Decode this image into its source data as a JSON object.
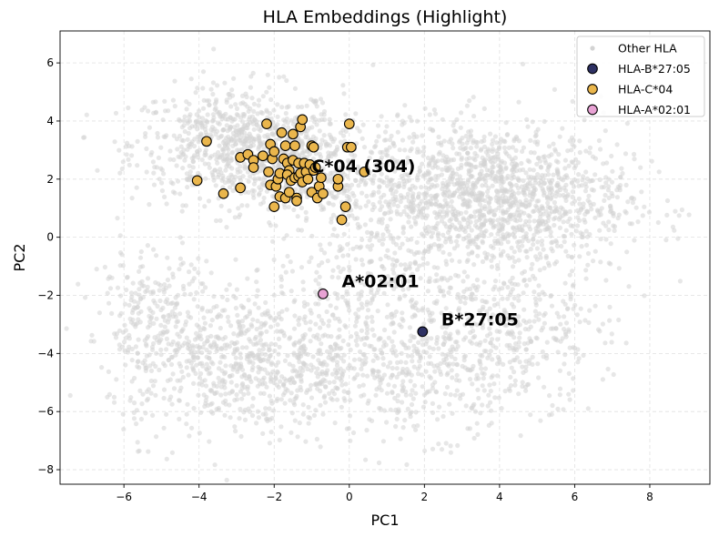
{
  "chart_data": {
    "type": "scatter",
    "title": "HLA Embeddings (Highlight)",
    "xlabel": "PC1",
    "ylabel": "PC2",
    "xlim": [
      -7.7,
      9.6
    ],
    "ylim": [
      -8.5,
      7.1
    ],
    "xticks": [
      -6,
      -4,
      -2,
      0,
      2,
      4,
      6,
      8
    ],
    "yticks": [
      -8,
      -6,
      -4,
      -2,
      0,
      2,
      4,
      6
    ],
    "xtick_labels": [
      "−6",
      "−4",
      "−2",
      "0",
      "2",
      "4",
      "6",
      "8"
    ],
    "ytick_labels": [
      "−8",
      "−6",
      "−4",
      "−2",
      "0",
      "2",
      "4",
      "6"
    ],
    "grid": true,
    "legend_position": "top-right",
    "background_clusters": [
      {
        "cx": -3.0,
        "cy": 3.2,
        "sx": 1.4,
        "sy": 1.0,
        "n": 700
      },
      {
        "cx": -1.5,
        "cy": 2.4,
        "sx": 1.0,
        "sy": 0.9,
        "n": 300
      },
      {
        "cx": 4.0,
        "cy": 1.3,
        "sx": 1.7,
        "sy": 1.3,
        "n": 1300
      },
      {
        "cx": 1.5,
        "cy": 2.0,
        "sx": 1.2,
        "sy": 1.0,
        "n": 250
      },
      {
        "cx": -4.0,
        "cy": -4.3,
        "sx": 1.2,
        "sy": 1.3,
        "n": 400
      },
      {
        "cx": -1.8,
        "cy": -4.2,
        "sx": 1.3,
        "sy": 1.2,
        "n": 400
      },
      {
        "cx": 1.5,
        "cy": -4.4,
        "sx": 1.7,
        "sy": 1.2,
        "n": 500
      },
      {
        "cx": 4.3,
        "cy": -3.3,
        "sx": 1.3,
        "sy": 1.2,
        "n": 300
      },
      {
        "cx": -5.3,
        "cy": -2.3,
        "sx": 0.8,
        "sy": 0.9,
        "n": 150
      },
      {
        "cx": 0.8,
        "cy": -1.0,
        "sx": 1.5,
        "sy": 1.0,
        "n": 200
      }
    ],
    "series": [
      {
        "name": "Other HLA",
        "color": "#d3d3d3",
        "marker": "small-circle",
        "points": "background"
      },
      {
        "name": "HLA-B*27:05",
        "color": "#2e3163",
        "edge": "#000000",
        "points": [
          [
            1.95,
            -3.25
          ]
        ]
      },
      {
        "name": "HLA-C*04",
        "color": "#eab64c",
        "edge": "#000000",
        "points": [
          [
            -3.8,
            3.3
          ],
          [
            -4.05,
            1.95
          ],
          [
            -3.35,
            1.5
          ],
          [
            -2.9,
            2.75
          ],
          [
            -2.9,
            1.7
          ],
          [
            -2.7,
            2.85
          ],
          [
            -2.55,
            2.65
          ],
          [
            -2.3,
            2.8
          ],
          [
            -2.2,
            3.9
          ],
          [
            -2.15,
            2.25
          ],
          [
            -2.1,
            3.2
          ],
          [
            -2.1,
            1.8
          ],
          [
            -2.05,
            2.7
          ],
          [
            -2.0,
            2.95
          ],
          [
            -1.95,
            1.75
          ],
          [
            -2.0,
            1.05
          ],
          [
            -1.9,
            2.0
          ],
          [
            -1.85,
            2.2
          ],
          [
            -1.85,
            1.4
          ],
          [
            -1.8,
            3.6
          ],
          [
            -1.75,
            2.7
          ],
          [
            -1.7,
            3.15
          ],
          [
            -1.7,
            1.35
          ],
          [
            -1.65,
            2.55
          ],
          [
            -1.6,
            2.3
          ],
          [
            -1.65,
            2.15
          ],
          [
            -1.55,
            1.95
          ],
          [
            -1.5,
            2.65
          ],
          [
            -1.5,
            3.55
          ],
          [
            -1.45,
            3.15
          ],
          [
            -1.45,
            2.05
          ],
          [
            -1.4,
            1.35
          ],
          [
            -1.4,
            1.25
          ],
          [
            -1.35,
            2.55
          ],
          [
            -1.35,
            2.1
          ],
          [
            -1.3,
            3.8
          ],
          [
            -1.3,
            2.2
          ],
          [
            -1.25,
            4.05
          ],
          [
            -1.25,
            1.9
          ],
          [
            -1.2,
            2.55
          ],
          [
            -1.15,
            2.25
          ],
          [
            -1.1,
            2.0
          ],
          [
            -1.05,
            2.5
          ],
          [
            -1.0,
            3.15
          ],
          [
            -1.0,
            1.55
          ],
          [
            -0.95,
            3.1
          ],
          [
            -0.95,
            2.3
          ],
          [
            -0.9,
            2.4
          ],
          [
            -0.85,
            1.35
          ],
          [
            -0.8,
            1.75
          ],
          [
            -0.75,
            2.05
          ],
          [
            -0.7,
            1.5
          ],
          [
            -0.3,
            1.75
          ],
          [
            -0.3,
            2.0
          ],
          [
            -0.2,
            0.6
          ],
          [
            -0.1,
            1.05
          ],
          [
            -0.05,
            3.1
          ],
          [
            0.0,
            3.9
          ],
          [
            0.05,
            3.1
          ],
          [
            0.4,
            2.25
          ],
          [
            -1.6,
            1.55
          ],
          [
            -2.55,
            2.4
          ]
        ]
      },
      {
        "name": "HLA-A*02:01",
        "color": "#e8a2d4",
        "edge": "#000000",
        "points": [
          [
            -0.7,
            -1.95
          ]
        ]
      }
    ],
    "annotations": [
      {
        "text": "C*04 (304)",
        "x": -1.0,
        "y": 2.25
      },
      {
        "text": "A*02:01",
        "x": -0.2,
        "y": -1.72
      },
      {
        "text": "B*27:05",
        "x": 2.45,
        "y": -3.03
      }
    ]
  }
}
